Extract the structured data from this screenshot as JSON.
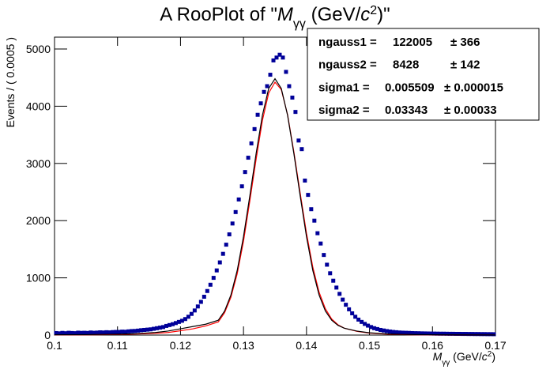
{
  "chart_data": {
    "type": "rooplot",
    "title_parts": [
      "A RooPlot of \"",
      "M",
      "γγ",
      " (GeV/",
      "c",
      "2",
      ")\""
    ],
    "x_label_parts": [
      "M",
      "γγ",
      " (GeV/",
      "c",
      "2",
      ")"
    ],
    "y_label": "Events / ( 0.0005 )",
    "xlim": [
      0.1,
      0.17
    ],
    "ylim": [
      0,
      5207
    ],
    "xticks": [
      0.1,
      0.11,
      0.12,
      0.13,
      0.14,
      0.15,
      0.16,
      0.17
    ],
    "yticks": [
      0,
      1000,
      2000,
      3000,
      4000,
      5000
    ],
    "series": [
      {
        "type": "scatter",
        "color": "#000099",
        "x": [
          0.10025,
          0.10075,
          0.10125,
          0.10175,
          0.10225,
          0.10275,
          0.10325,
          0.10375,
          0.10425,
          0.10475,
          0.10525,
          0.10575,
          0.10625,
          0.10675,
          0.10725,
          0.10775,
          0.10825,
          0.10875,
          0.10925,
          0.10975,
          0.11025,
          0.11075,
          0.11125,
          0.11175,
          0.11225,
          0.11275,
          0.11325,
          0.11375,
          0.11425,
          0.11475,
          0.11525,
          0.11575,
          0.11625,
          0.11675,
          0.11725,
          0.11775,
          0.11825,
          0.11875,
          0.11925,
          0.11975,
          0.12025,
          0.12075,
          0.12125,
          0.12175,
          0.12225,
          0.12275,
          0.12325,
          0.12375,
          0.12425,
          0.12475,
          0.12525,
          0.12575,
          0.12625,
          0.12675,
          0.12725,
          0.12775,
          0.12825,
          0.12875,
          0.12925,
          0.12975,
          0.13025,
          0.13075,
          0.13125,
          0.13175,
          0.13225,
          0.13275,
          0.13325,
          0.13375,
          0.13425,
          0.13475,
          0.13525,
          0.13575,
          0.13625,
          0.13675,
          0.13725,
          0.13775,
          0.13825,
          0.13875,
          0.13925,
          0.13975,
          0.14025,
          0.14075,
          0.14125,
          0.14175,
          0.14225,
          0.14275,
          0.14325,
          0.14375,
          0.14425,
          0.14475,
          0.14525,
          0.14575,
          0.14625,
          0.14675,
          0.14725,
          0.14775,
          0.14825,
          0.14875,
          0.14925,
          0.14975,
          0.15025,
          0.15075,
          0.15125,
          0.15175,
          0.15225,
          0.15275,
          0.15325,
          0.15375,
          0.15425,
          0.15475,
          0.15525,
          0.15575,
          0.15625,
          0.15675,
          0.15725,
          0.15775,
          0.15825,
          0.15875,
          0.15925,
          0.15975,
          0.16025,
          0.16075,
          0.16125,
          0.16175,
          0.16225,
          0.16275,
          0.16325,
          0.16375,
          0.16425,
          0.16475,
          0.16525,
          0.16575,
          0.16625,
          0.16675,
          0.16725,
          0.16775,
          0.16825,
          0.16875,
          0.16925,
          0.16975
        ],
        "values": [
          35,
          30,
          38,
          32,
          40,
          36,
          33,
          42,
          38,
          40,
          37,
          45,
          40,
          43,
          48,
          45,
          50,
          47,
          52,
          55,
          55,
          60,
          58,
          65,
          70,
          72,
          78,
          85,
          90,
          95,
          100,
          110,
          120,
          130,
          140,
          160,
          175,
          190,
          210,
          230,
          250,
          280,
          320,
          370,
          430,
          500,
          580,
          670,
          770,
          880,
          1000,
          1130,
          1270,
          1420,
          1580,
          1760,
          1950,
          2150,
          2370,
          2600,
          2850,
          3100,
          3350,
          3600,
          3850,
          4050,
          4250,
          4350,
          4550,
          4800,
          4850,
          4900,
          4850,
          4600,
          4350,
          4150,
          3900,
          3400,
          3250,
          2700,
          2450,
          2200,
          2000,
          1780,
          1600,
          1400,
          1230,
          1080,
          950,
          830,
          720,
          620,
          530,
          450,
          380,
          320,
          270,
          230,
          195,
          165,
          140,
          120,
          105,
          90,
          80,
          70,
          62,
          55,
          50,
          45,
          42,
          40,
          38,
          35,
          33,
          32,
          30,
          29,
          28,
          27,
          26,
          25,
          24,
          24,
          23,
          22,
          22,
          21,
          21,
          20,
          20,
          19,
          19,
          18,
          18,
          17,
          17,
          16,
          16,
          15
        ]
      },
      {
        "type": "line",
        "color": "#ff0000",
        "x": [
          0.1,
          0.105,
          0.11,
          0.113,
          0.116,
          0.118,
          0.12,
          0.122,
          0.124,
          0.126,
          0.127,
          0.128,
          0.129,
          0.13,
          0.131,
          0.132,
          0.133,
          0.134,
          0.135,
          0.136,
          0.137,
          0.138,
          0.139,
          0.14,
          0.141,
          0.142,
          0.143,
          0.144,
          0.145,
          0.146,
          0.148,
          0.15,
          0.153,
          0.156,
          0.16,
          0.17
        ],
        "values": [
          3,
          5,
          10,
          18,
          30,
          45,
          75,
          110,
          160,
          230,
          390,
          660,
          1070,
          1640,
          2340,
          3070,
          3750,
          4230,
          4420,
          4290,
          3850,
          3200,
          2480,
          1780,
          1190,
          750,
          460,
          280,
          180,
          120,
          65,
          35,
          15,
          7,
          3,
          1
        ]
      },
      {
        "type": "line",
        "color": "#000000",
        "x": [
          0.1,
          0.105,
          0.11,
          0.113,
          0.116,
          0.118,
          0.12,
          0.122,
          0.124,
          0.126,
          0.127,
          0.128,
          0.129,
          0.13,
          0.131,
          0.132,
          0.133,
          0.134,
          0.135,
          0.136,
          0.137,
          0.138,
          0.139,
          0.14,
          0.141,
          0.142,
          0.143,
          0.144,
          0.145,
          0.146,
          0.148,
          0.15,
          0.153,
          0.156,
          0.16,
          0.17
        ],
        "values": [
          5,
          8,
          15,
          25,
          45,
          70,
          110,
          150,
          190,
          260,
          420,
          700,
          1130,
          1720,
          2430,
          3170,
          3840,
          4310,
          4480,
          4310,
          3840,
          3170,
          2430,
          1720,
          1130,
          700,
          420,
          260,
          170,
          120,
          70,
          40,
          20,
          10,
          5,
          2
        ]
      }
    ],
    "stats": [
      {
        "name": "ngauss1 =",
        "value": "122005",
        "error": "± 366"
      },
      {
        "name": "ngauss2 =",
        "value": "8428",
        "error": "± 142"
      },
      {
        "name": "sigma1 =",
        "value": "0.005509",
        "error": "± 0.000015"
      },
      {
        "name": "sigma2 =",
        "value": "0.03343",
        "error": "± 0.00033"
      }
    ]
  }
}
